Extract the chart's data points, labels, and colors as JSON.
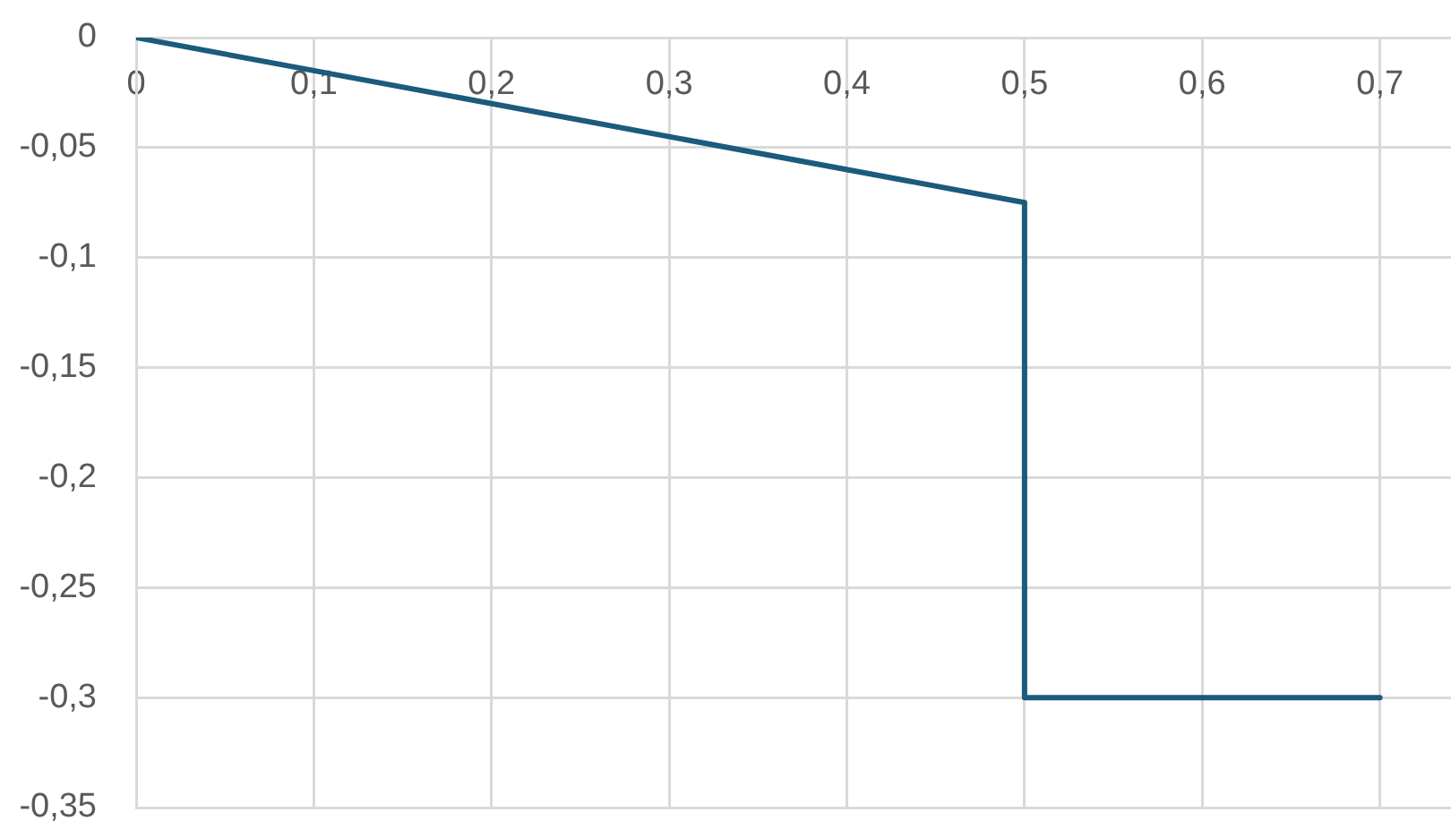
{
  "chart_data": {
    "type": "line",
    "x": [
      0,
      0.5,
      0.5,
      0.7
    ],
    "values": [
      0,
      -0.075,
      -0.3,
      -0.3
    ],
    "color": "#1b5b7b",
    "xlim": [
      0,
      0.74
    ],
    "xticks": [
      0,
      {
        "value": 0.1,
        "label": "0,1"
      },
      {
        "value": 0.2,
        "label": "0,2"
      },
      {
        "value": 0.3,
        "label": "0,3"
      },
      {
        "value": 0.4,
        "label": "0,4"
      },
      {
        "value": 0.5,
        "label": "0,5"
      },
      {
        "value": 0.6,
        "label": "0,6"
      },
      {
        "value": 0.7,
        "label": "0,7"
      }
    ],
    "ylim": [
      -0.35,
      0
    ],
    "yticks": [
      0,
      {
        "value": -0.05,
        "label": "-0,05"
      },
      {
        "value": -0.1,
        "label": "-0,1"
      },
      {
        "value": -0.15,
        "label": "-0,15"
      },
      {
        "value": -0.2,
        "label": "-0,2"
      },
      {
        "value": -0.25,
        "label": "-0,25"
      },
      {
        "value": -0.3,
        "label": "-0,3"
      },
      {
        "value": -0.35,
        "label": "-0,35"
      }
    ],
    "grid": true
  }
}
